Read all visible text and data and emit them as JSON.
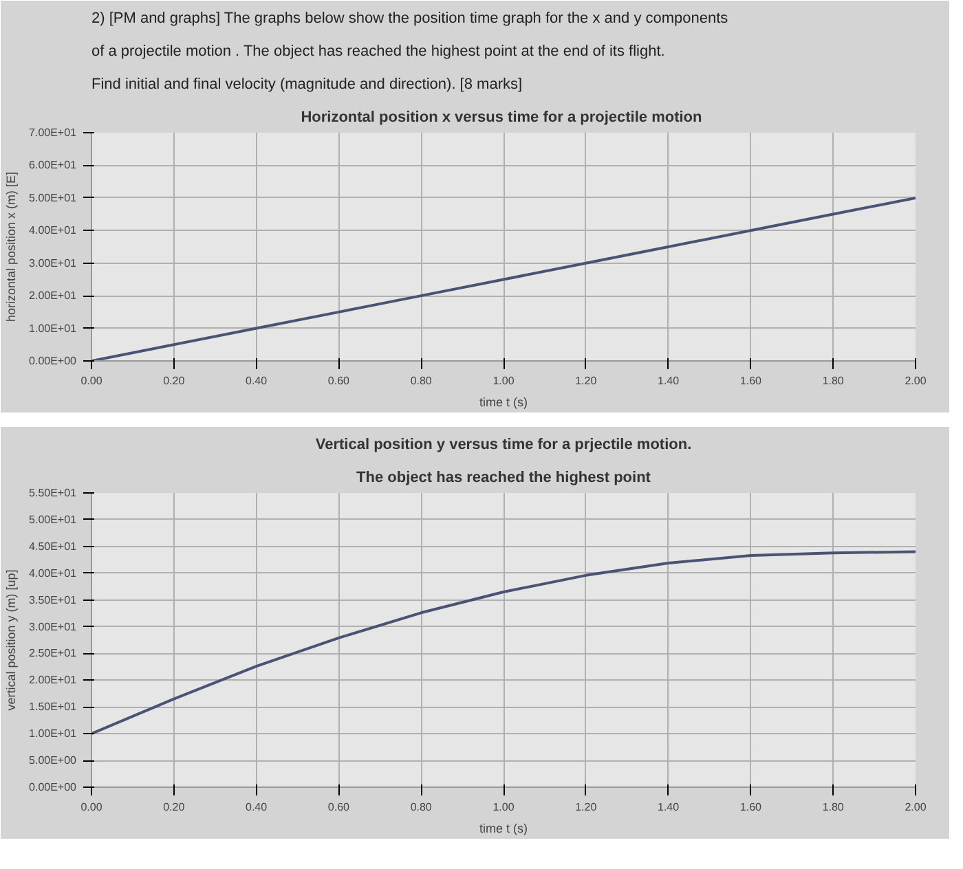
{
  "chart_data": [
    {
      "type": "line",
      "title": "Horizontal position x  versus time for a projectile motion",
      "xlabel": "time t (s)",
      "ylabel": "horizontal position x (m) [E]",
      "annotations": [
        "2) [PM and graphs] The graphs below show the position time graph for the x and y components",
        "of a projectile motion . The object has reached the highest point at the end of its flight.",
        "Find initial and final velocity (magnitude and direction). [8 marks]"
      ],
      "x": [
        0,
        0.2,
        0.4,
        0.6,
        0.8,
        1.0,
        1.2,
        1.4,
        1.6,
        1.8,
        2.0
      ],
      "series": [
        {
          "color": "#4b5375",
          "values": [
            0,
            5,
            10,
            15,
            20,
            25,
            30,
            35,
            40,
            45,
            50
          ]
        }
      ],
      "xlim": [
        0,
        2
      ],
      "ylim": [
        0,
        70
      ],
      "xticks": [
        {
          "value": 0,
          "label": "0.00"
        },
        {
          "value": 0.2,
          "label": "0.20"
        },
        {
          "value": 0.4,
          "label": "0.40"
        },
        {
          "value": 0.6,
          "label": "0.60"
        },
        {
          "value": 0.8,
          "label": "0.80"
        },
        {
          "value": 1.0,
          "label": "1.00"
        },
        {
          "value": 1.2,
          "label": "1.20"
        },
        {
          "value": 1.4,
          "label": "1.40"
        },
        {
          "value": 1.6,
          "label": "1.60"
        },
        {
          "value": 1.8,
          "label": "1.80"
        },
        {
          "value": 2.0,
          "label": "2.00"
        }
      ],
      "yticks": [
        {
          "value": 0,
          "label": "0.00E+00"
        },
        {
          "value": 10,
          "label": "1.00E+01"
        },
        {
          "value": 20,
          "label": "2.00E+01"
        },
        {
          "value": 30,
          "label": "3.00E+01"
        },
        {
          "value": 40,
          "label": "4.00E+01"
        },
        {
          "value": 50,
          "label": "5.00E+01"
        },
        {
          "value": 60,
          "label": "6.00E+01"
        },
        {
          "value": 70,
          "label": "7.00E+01"
        }
      ],
      "grid": true,
      "marker": "none",
      "line_style": "solid"
    },
    {
      "type": "line",
      "title": "Vertical position y versus time for a prjectile motion.",
      "subtitle": "The object has reached the highest point",
      "xlabel": "time t (s)",
      "ylabel": "vertical position y (m) [up]",
      "x": [
        0,
        0.2,
        0.4,
        0.6,
        0.8,
        1.0,
        1.2,
        1.4,
        1.6,
        1.8,
        2.0
      ],
      "series": [
        {
          "color": "#4b5375",
          "values": [
            10,
            16.5,
            22.6,
            27.9,
            32.6,
            36.5,
            39.6,
            41.9,
            43.3,
            43.8,
            44
          ]
        }
      ],
      "xlim": [
        0,
        2
      ],
      "ylim": [
        0,
        55
      ],
      "xticks": [
        {
          "value": 0,
          "label": "0.00"
        },
        {
          "value": 0.2,
          "label": "0.20"
        },
        {
          "value": 0.4,
          "label": "0.40"
        },
        {
          "value": 0.6,
          "label": "0.60"
        },
        {
          "value": 0.8,
          "label": "0.80"
        },
        {
          "value": 1.0,
          "label": "1.00"
        },
        {
          "value": 1.2,
          "label": "1.20"
        },
        {
          "value": 1.4,
          "label": "1.40"
        },
        {
          "value": 1.6,
          "label": "1.60"
        },
        {
          "value": 1.8,
          "label": "1.80"
        },
        {
          "value": 2.0,
          "label": "2.00"
        }
      ],
      "yticks": [
        {
          "value": 0,
          "label": "0.00E+00"
        },
        {
          "value": 5,
          "label": "5.00E+00"
        },
        {
          "value": 10,
          "label": "1.00E+01"
        },
        {
          "value": 15,
          "label": "1.50E+01"
        },
        {
          "value": 20,
          "label": "2.00E+01"
        },
        {
          "value": 25,
          "label": "2.50E+01"
        },
        {
          "value": 30,
          "label": "3.00E+01"
        },
        {
          "value": 35,
          "label": "3.50E+01"
        },
        {
          "value": 40,
          "label": "4.00E+01"
        },
        {
          "value": 45,
          "label": "4.50E+01"
        },
        {
          "value": 50,
          "label": "5.00E+01"
        },
        {
          "value": 55,
          "label": "5.50E+01"
        }
      ],
      "grid": true,
      "marker": "none",
      "line_style": "solid"
    }
  ]
}
